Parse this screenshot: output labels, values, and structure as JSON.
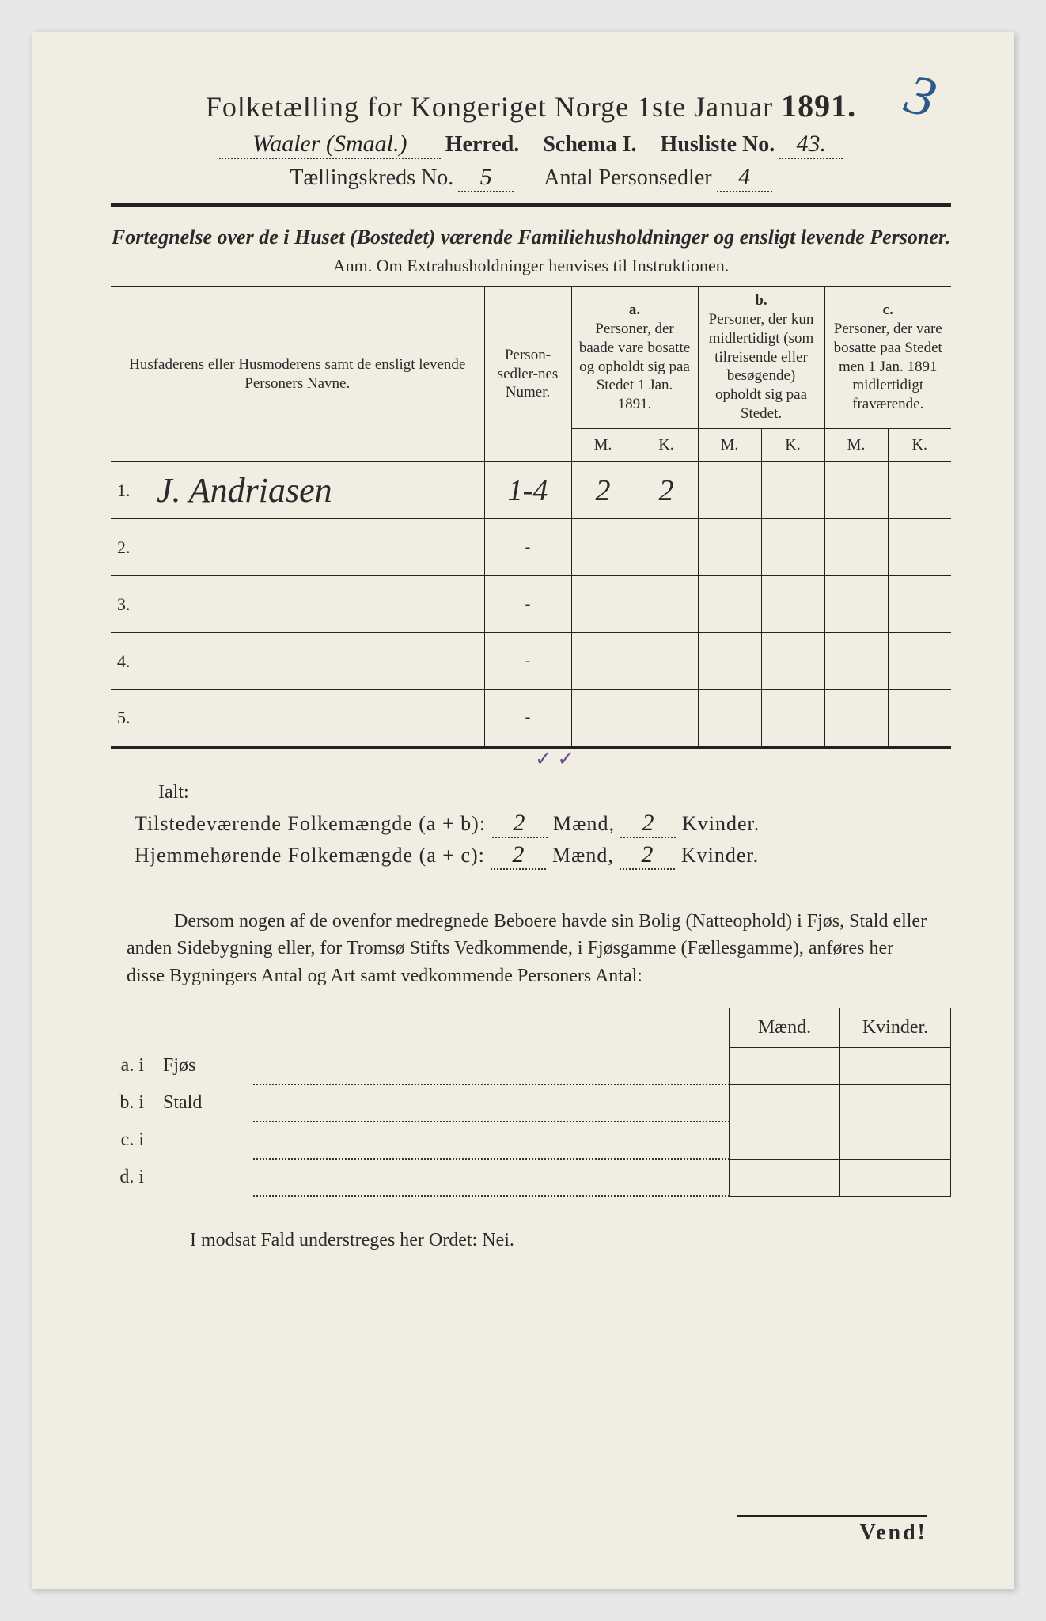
{
  "colors": {
    "paper": "#f0ede2",
    "ink": "#2a2a2a",
    "blue_pencil": "#2b5a8a",
    "purple_tick": "#6a4a8a"
  },
  "page_number_handwritten": "3",
  "title": {
    "main": "Folketælling for Kongeriget Norge 1ste Januar",
    "year": "1891."
  },
  "header_fields": {
    "herred_label": "Herred.",
    "herred_value": "Waaler (Smaal.)",
    "schema_label": "Schema I.",
    "husliste_label": "Husliste No.",
    "husliste_value": "43.",
    "kreds_label": "Tællingskreds No.",
    "kreds_value": "5",
    "antal_label": "Antal Personsedler",
    "antal_value": "4"
  },
  "subtitle": "Fortegnelse over de i Huset (Bostedet) værende Familiehusholdninger og ensligt levende Personer.",
  "anm": "Anm.  Om Extrahusholdninger henvises til Instruktionen.",
  "table_headers": {
    "name": "Husfaderens eller Husmoderens samt de ensligt levende Personers Navne.",
    "sedler": "Person-sedler-nes Numer.",
    "a_letter": "a.",
    "a": "Personer, der baade vare bosatte og opholdt sig paa Stedet 1 Jan. 1891.",
    "b_letter": "b.",
    "b": "Personer, der kun midlertidigt (som tilreisende eller besøgende) opholdt sig paa Stedet.",
    "c_letter": "c.",
    "c": "Personer, der vare bosatte paa Stedet men 1 Jan. 1891 midlertidigt fraværende.",
    "M": "M.",
    "K": "K."
  },
  "rows": [
    {
      "n": "1.",
      "name": "J. Andriasen",
      "sedler": "1-4",
      "aM": "2",
      "aK": "2",
      "bM": "",
      "bK": "",
      "cM": "",
      "cK": ""
    },
    {
      "n": "2.",
      "name": "",
      "sedler": "-",
      "aM": "",
      "aK": "",
      "bM": "",
      "bK": "",
      "cM": "",
      "cK": ""
    },
    {
      "n": "3.",
      "name": "",
      "sedler": "-",
      "aM": "",
      "aK": "",
      "bM": "",
      "bK": "",
      "cM": "",
      "cK": ""
    },
    {
      "n": "4.",
      "name": "",
      "sedler": "-",
      "aM": "",
      "aK": "",
      "bM": "",
      "bK": "",
      "cM": "",
      "cK": ""
    },
    {
      "n": "5.",
      "name": "",
      "sedler": "-",
      "aM": "",
      "aK": "",
      "bM": "",
      "bK": "",
      "cM": "",
      "cK": ""
    }
  ],
  "tick_mark": "✓  ✓",
  "ialt_label": "Ialt:",
  "totals": {
    "line1_label_a": "Tilstedeværende Folkemængde (a + b):",
    "line2_label_a": "Hjemmehørende Folkemængde (a + c):",
    "maend_label": "Mænd,",
    "kvinder_label": "Kvinder.",
    "line1_m": "2",
    "line1_k": "2",
    "line2_m": "2",
    "line2_k": "2"
  },
  "paragraph": "Dersom nogen af de ovenfor medregnede Beboere havde sin Bolig (Natteophold) i Fjøs, Stald eller anden Sidebygning eller, for Tromsø Stifts Vedkommende, i Fjøsgamme (Fællesgamme), anføres her disse Bygningers Antal og Art samt vedkommende Personers Antal:",
  "bldg_headers": {
    "m": "Mænd.",
    "k": "Kvinder."
  },
  "bldg_rows": [
    {
      "lab": "a.  i",
      "type": "Fjøs"
    },
    {
      "lab": "b.  i",
      "type": "Stald"
    },
    {
      "lab": "c.  i",
      "type": ""
    },
    {
      "lab": "d.  i",
      "type": ""
    }
  ],
  "nei_line": {
    "pre": "I modsat Fald understreges her Ordet: ",
    "word": "Nei."
  },
  "vend": "Vend!"
}
